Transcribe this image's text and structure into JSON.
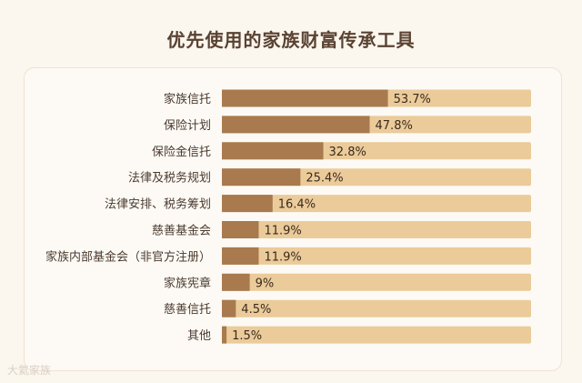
{
  "chart_data": {
    "type": "bar",
    "orientation": "horizontal",
    "title": "优先使用的家族财富传承工具",
    "categories": [
      "家族信托",
      "保险计划",
      "保险金信托",
      "法律及税务规划",
      "法律安排、税务筹划",
      "慈善基金会",
      "家族内部基金会（非官方注册）",
      "家族宪章",
      "慈善信托",
      "其他"
    ],
    "values": [
      53.7,
      47.8,
      32.8,
      25.4,
      16.4,
      11.9,
      11.9,
      9,
      4.5,
      1.5
    ],
    "value_labels": [
      "53.7%",
      "47.8%",
      "32.8%",
      "25.4%",
      "16.4%",
      "11.9%",
      "11.9%",
      "9%",
      "4.5%",
      "1.5%"
    ],
    "xlim": [
      0,
      100
    ],
    "colors": {
      "bar": "#a87a4e",
      "track": "#ebcb9a",
      "label": "#4a3a2e"
    }
  },
  "watermark": "大氦家族"
}
